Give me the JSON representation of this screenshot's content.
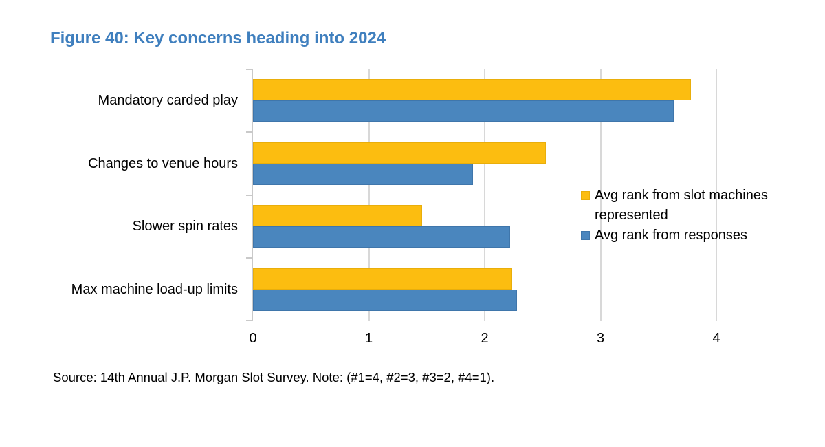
{
  "figure": {
    "title": "Figure 40: Key concerns heading into 2024",
    "source_note": "Source: 14th Annual J.P. Morgan Slot Survey. Note: (#1=4, #2=3, #3=2, #4=1)."
  },
  "colors": {
    "title": "#3F7FBE",
    "gridline": "#D8D8D8",
    "axis": "#C9C9C9",
    "text": "#000000",
    "series_yellow": "#FCBD10",
    "series_yellow_border": "#E9AE0B",
    "series_blue": "#4A86BE",
    "series_blue_border": "#3F76AB"
  },
  "chart_data": {
    "type": "bar",
    "orientation": "horizontal",
    "title": "Figure 40: Key concerns heading into 2024",
    "categories": [
      "Mandatory carded play",
      "Changes to venue hours",
      "Slower spin rates",
      "Max machine load-up limits"
    ],
    "series": [
      {
        "name": "Avg rank from slot machines represented",
        "color": "#FCBD10",
        "border": "#E9AE0B",
        "values": [
          3.78,
          2.53,
          1.46,
          2.24
        ]
      },
      {
        "name": "Avg rank from responses",
        "color": "#4A86BE",
        "border": "#3F76AB",
        "values": [
          3.63,
          1.9,
          2.22,
          2.28
        ]
      }
    ],
    "xlabel": "",
    "ylabel": "",
    "xlim": [
      0,
      4
    ],
    "xticks": [
      0,
      1,
      2,
      3,
      4
    ],
    "grid": "vertical-gridlines",
    "legend_position": "inside-right"
  }
}
